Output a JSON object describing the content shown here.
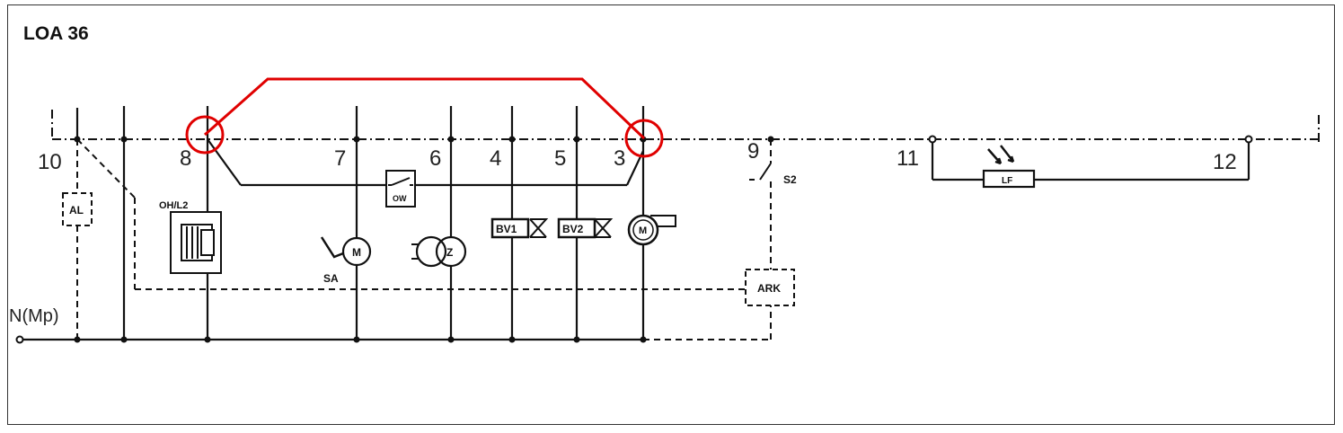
{
  "title": "LOA 36",
  "terminals": {
    "t10": "10",
    "t8": "8",
    "t7": "7",
    "t6": "6",
    "t4": "4",
    "t5": "5",
    "t3": "3",
    "t9": "9",
    "t11": "11",
    "t12": "12"
  },
  "labels": {
    "neutral": "N(Mp)",
    "al": "AL",
    "ohl2": "OH/L2",
    "ow": "OW",
    "sa": "SA",
    "motor_m": "M",
    "ignition_z": "Z",
    "bv1": "BV1",
    "bv2": "BV2",
    "fan_m": "M",
    "s2": "S2",
    "ark": "ARK",
    "lf": "LF"
  },
  "colors": {
    "highlight": "#e00000",
    "wire": "#111111"
  }
}
